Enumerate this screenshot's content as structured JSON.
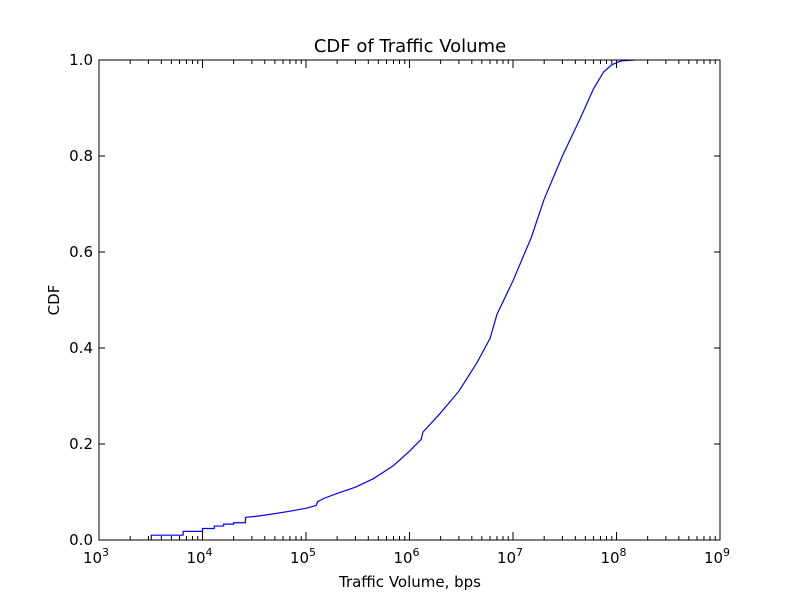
{
  "chart_data": {
    "type": "line",
    "title": "CDF of Traffic Volume",
    "xlabel": "Traffic Volume, bps",
    "ylabel": "CDF",
    "xscale": "log",
    "xlim": [
      1000,
      1000000000
    ],
    "ylim": [
      0.0,
      1.0
    ],
    "grid": false,
    "legend": "none",
    "x_ticks": [
      {
        "value": 1000,
        "base": "10",
        "exp": "3"
      },
      {
        "value": 10000,
        "base": "10",
        "exp": "4"
      },
      {
        "value": 100000,
        "base": "10",
        "exp": "5"
      },
      {
        "value": 1000000,
        "base": "10",
        "exp": "6"
      },
      {
        "value": 10000000,
        "base": "10",
        "exp": "7"
      },
      {
        "value": 100000000,
        "base": "10",
        "exp": "8"
      },
      {
        "value": 1000000000,
        "base": "10",
        "exp": "9"
      }
    ],
    "y_ticks": [
      {
        "value": 0.0,
        "label": "0.0"
      },
      {
        "value": 0.2,
        "label": "0.2"
      },
      {
        "value": 0.4,
        "label": "0.4"
      },
      {
        "value": 0.6,
        "label": "0.6"
      },
      {
        "value": 0.8,
        "label": "0.8"
      },
      {
        "value": 1.0,
        "label": "1.0"
      }
    ],
    "series": [
      {
        "color": "#0000ff",
        "points": [
          [
            3200,
            0.0
          ],
          [
            3200,
            0.01
          ],
          [
            6500,
            0.01
          ],
          [
            6500,
            0.018
          ],
          [
            10000,
            0.018
          ],
          [
            10000,
            0.024
          ],
          [
            13000,
            0.024
          ],
          [
            13000,
            0.029
          ],
          [
            16000,
            0.029
          ],
          [
            16000,
            0.033
          ],
          [
            20000,
            0.033
          ],
          [
            20000,
            0.036
          ],
          [
            26000,
            0.036
          ],
          [
            26000,
            0.047
          ],
          [
            35000,
            0.05
          ],
          [
            50000,
            0.055
          ],
          [
            70000,
            0.06
          ],
          [
            100000,
            0.066
          ],
          [
            125000,
            0.072
          ],
          [
            130000,
            0.08
          ],
          [
            150000,
            0.087
          ],
          [
            200000,
            0.097
          ],
          [
            300000,
            0.11
          ],
          [
            450000,
            0.128
          ],
          [
            700000,
            0.155
          ],
          [
            1000000,
            0.185
          ],
          [
            1300000,
            0.21
          ],
          [
            1350000,
            0.225
          ],
          [
            2000000,
            0.265
          ],
          [
            3000000,
            0.31
          ],
          [
            4500000,
            0.37
          ],
          [
            6000000,
            0.42
          ],
          [
            7000000,
            0.47
          ],
          [
            10000000,
            0.54
          ],
          [
            15000000,
            0.63
          ],
          [
            20000000,
            0.71
          ],
          [
            30000000,
            0.8
          ],
          [
            45000000,
            0.88
          ],
          [
            60000000,
            0.94
          ],
          [
            75000000,
            0.975
          ],
          [
            90000000,
            0.99
          ],
          [
            110000000,
            0.998
          ],
          [
            150000000,
            1.0
          ]
        ]
      }
    ]
  }
}
